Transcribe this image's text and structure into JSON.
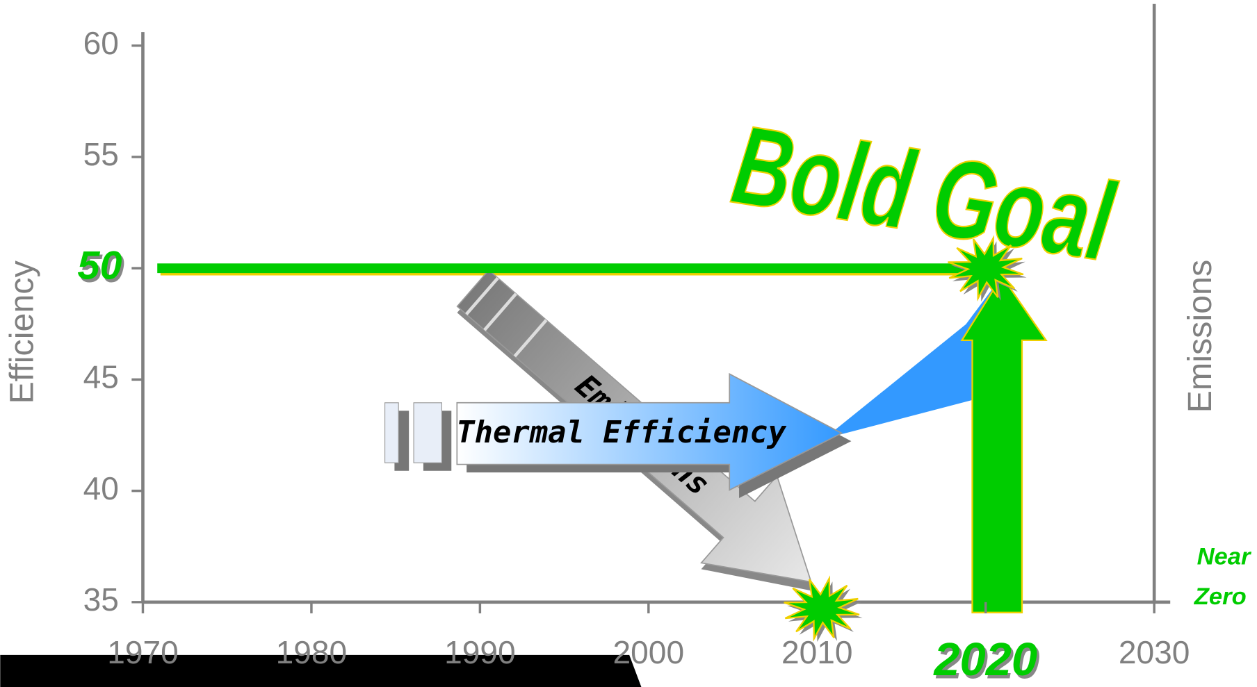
{
  "chart_data": {
    "type": "annotated",
    "title": "Bold Goal",
    "y_label": "Efficiency",
    "y2_label": "Emissions",
    "xlim": [
      1970,
      2030
    ],
    "xticks": [
      1970,
      1980,
      1990,
      2000,
      2010,
      2020,
      2030
    ],
    "ylim": [
      35,
      60
    ],
    "yticks": [
      35,
      40,
      45,
      50,
      55,
      60
    ],
    "axis_color": "#808080",
    "goal": {
      "x": 2020,
      "y": 50,
      "color": "#00cc00",
      "edge_color": "#f0d000"
    },
    "annotations": {
      "thermal": "Thermal Efficiency",
      "emissions": "Emissions",
      "near_zero": [
        "Near",
        "Zero"
      ]
    }
  }
}
